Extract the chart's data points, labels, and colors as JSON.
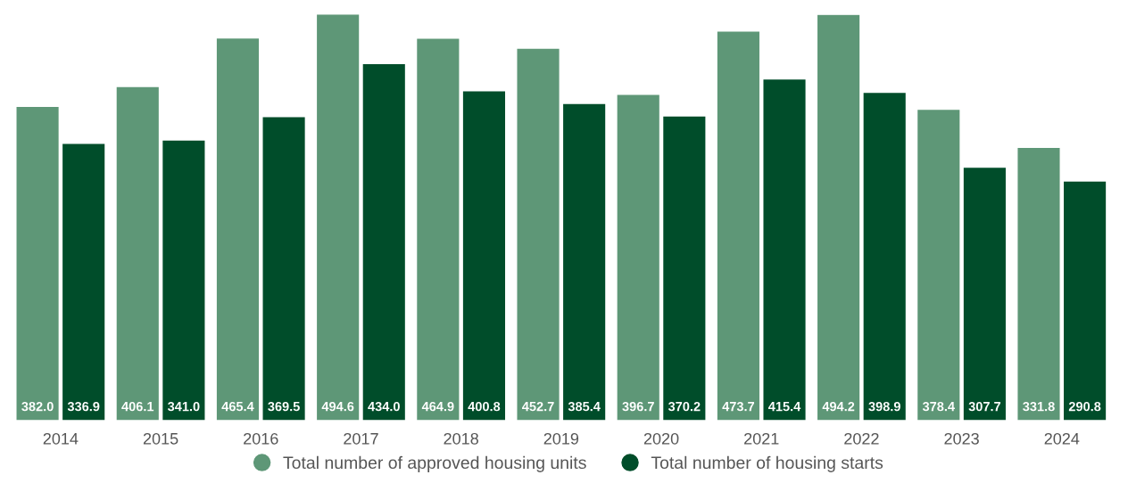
{
  "chart_data": {
    "type": "bar",
    "categories": [
      "2014",
      "2015",
      "2016",
      "2017",
      "2018",
      "2019",
      "2020",
      "2021",
      "2022",
      "2023",
      "2024"
    ],
    "series": [
      {
        "name": "Total number of approved housing units",
        "color": "#5e9777",
        "values": [
          382.0,
          406.1,
          465.4,
          494.6,
          464.9,
          452.7,
          396.7,
          473.7,
          494.2,
          378.4,
          331.8
        ],
        "value_labels": [
          "382.0",
          "406.1",
          "465.4",
          "494.6",
          "464.9",
          "452.7",
          "396.7",
          "473.7",
          "494.2",
          "378.4",
          "331.8"
        ]
      },
      {
        "name": "Total number of housing starts",
        "color": "#004d2a",
        "values": [
          336.9,
          341.0,
          369.5,
          434.0,
          400.8,
          385.4,
          370.2,
          415.4,
          398.9,
          307.7,
          290.8
        ],
        "value_labels": [
          "336.9",
          "341.0",
          "369.5",
          "434.0",
          "400.8",
          "385.4",
          "370.2",
          "415.4",
          "398.9",
          "307.7",
          "290.8"
        ]
      }
    ],
    "legend": "bottom",
    "grid": false
  }
}
